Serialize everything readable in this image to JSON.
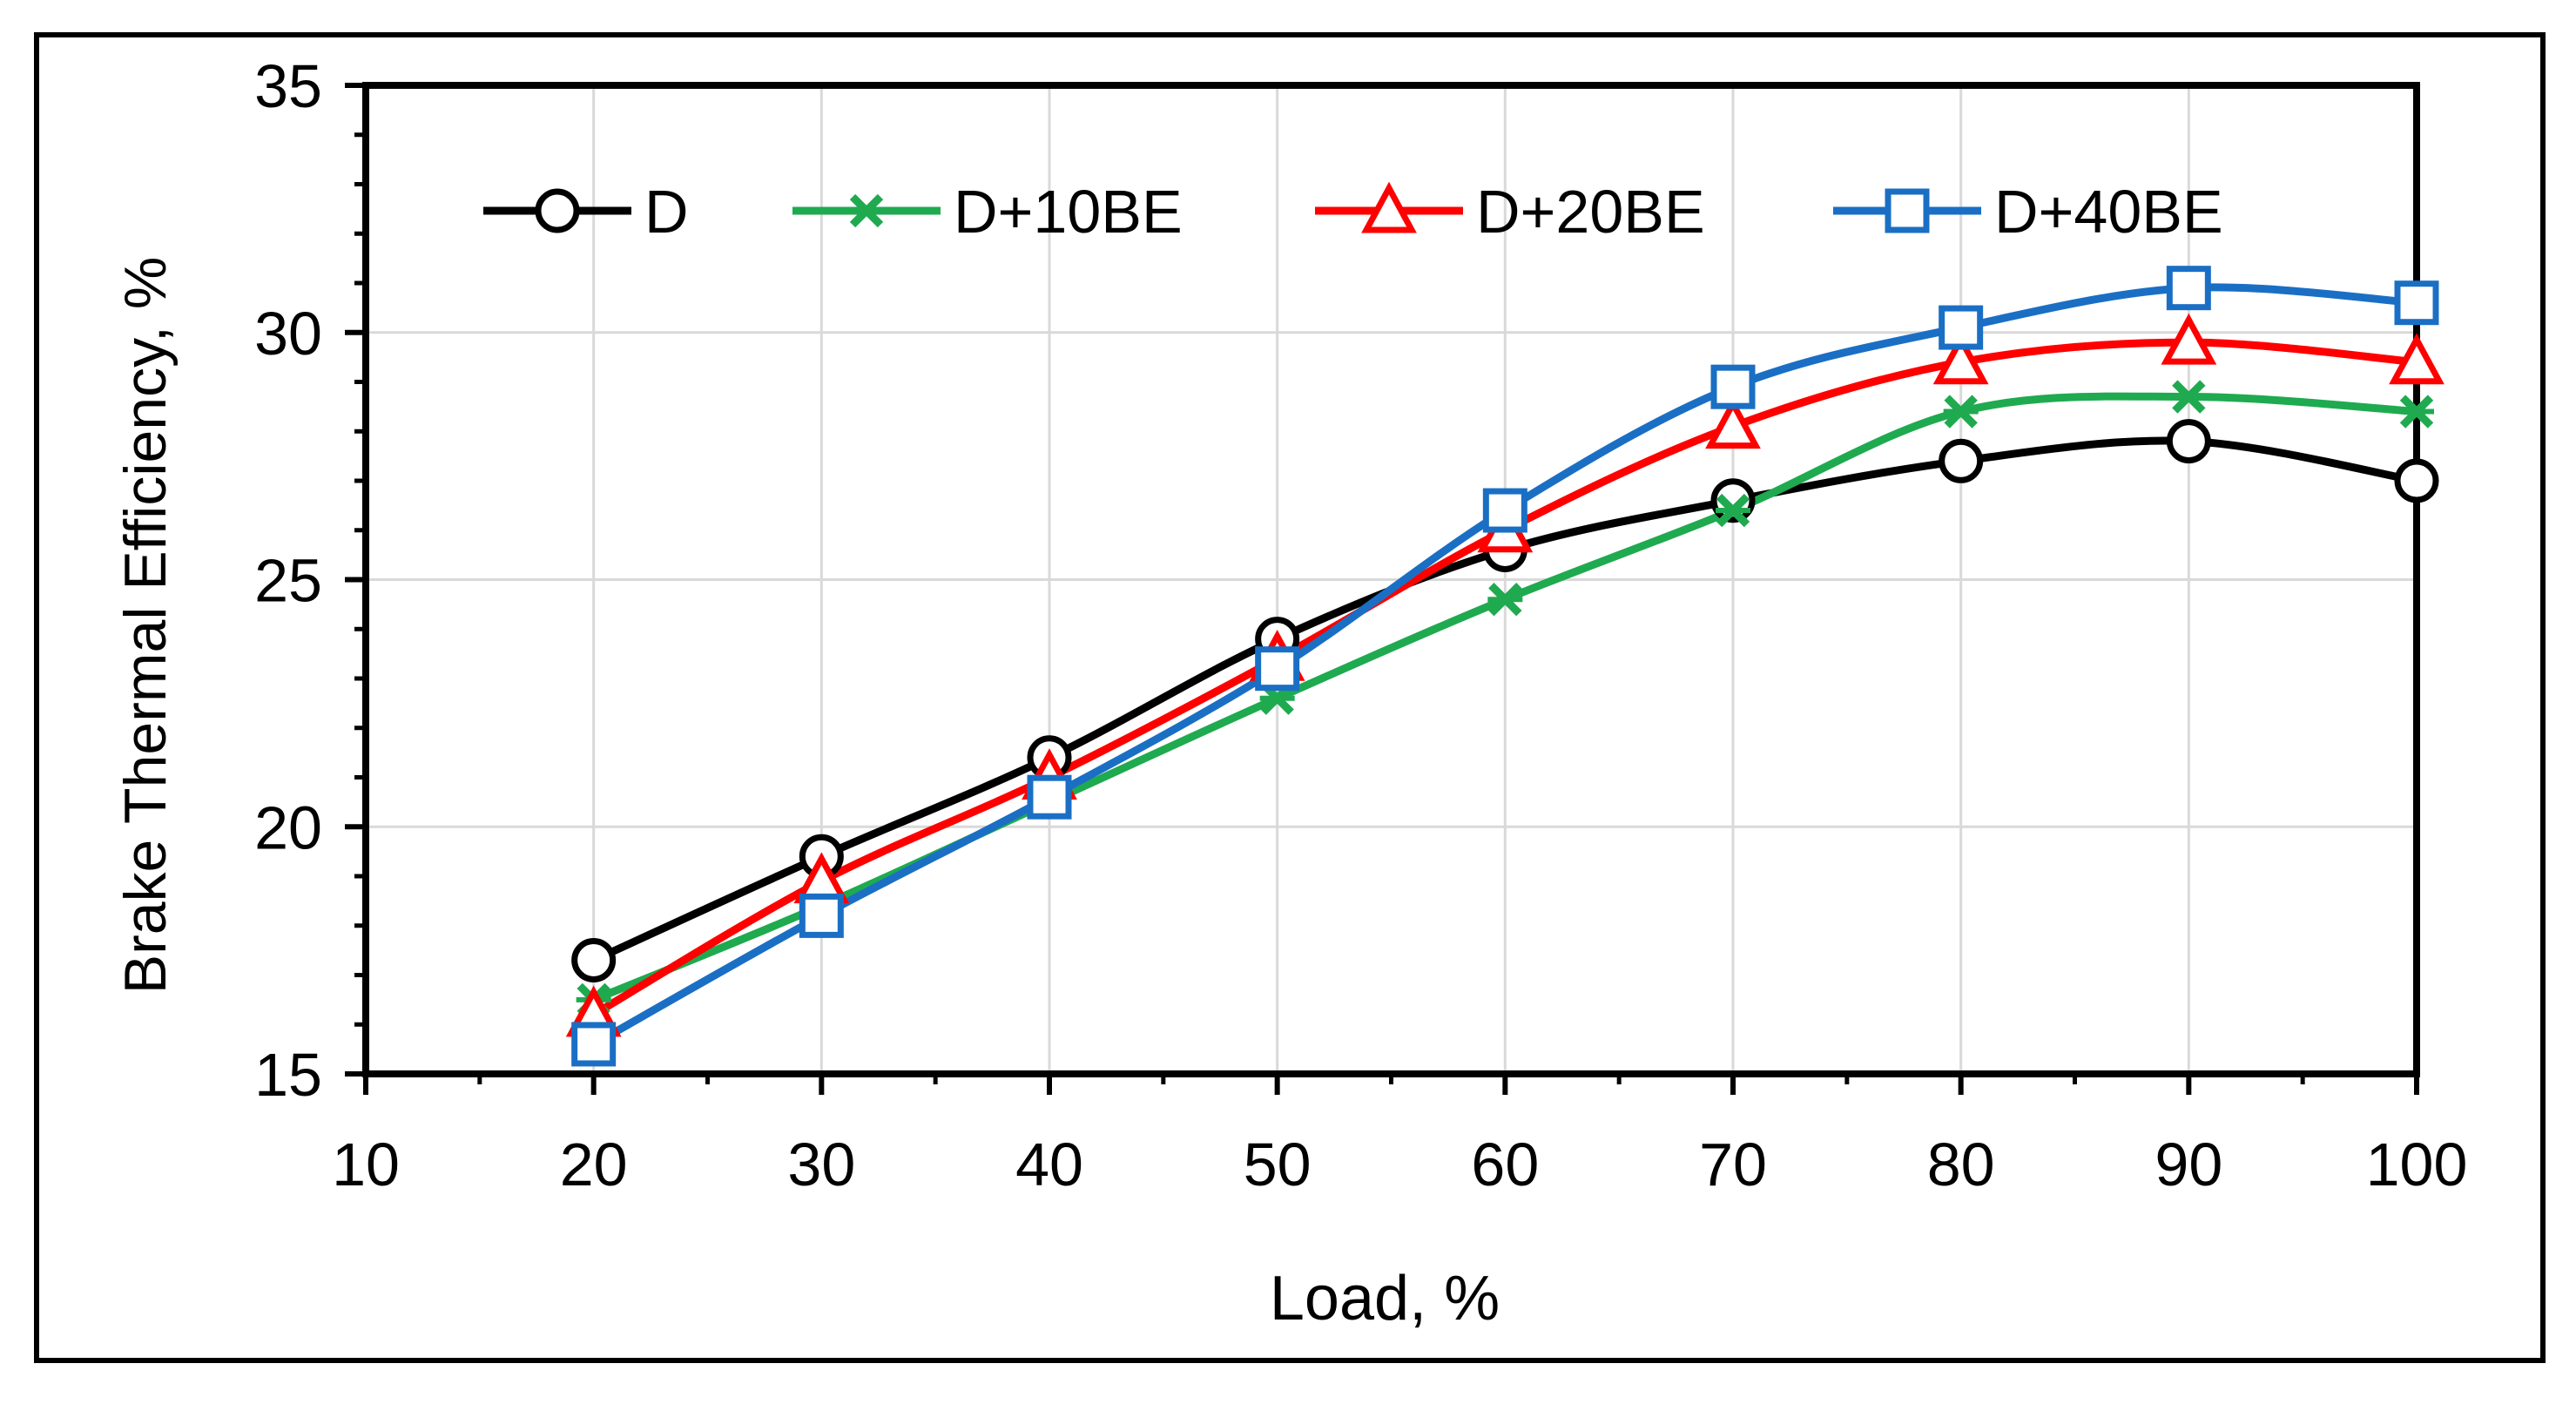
{
  "chart_data": {
    "type": "line",
    "title": "",
    "xlabel": "Load, %",
    "ylabel": "Brake Thermal Efficiency, %",
    "xlim": [
      10,
      100
    ],
    "ylim": [
      15,
      35
    ],
    "xticks": [
      10,
      20,
      30,
      40,
      50,
      60,
      70,
      80,
      90,
      100
    ],
    "yticks": [
      15,
      20,
      25,
      30,
      35
    ],
    "grid": true,
    "legend_position": "top",
    "x": [
      20,
      30,
      40,
      50,
      60,
      70,
      80,
      90,
      100
    ],
    "series": [
      {
        "name": "D",
        "color": "#000000",
        "marker": "circle",
        "values": [
          17.3,
          19.4,
          21.4,
          23.8,
          25.6,
          26.6,
          27.4,
          27.8,
          27.0
        ]
      },
      {
        "name": "D+10BE",
        "color": "#1FAA50",
        "marker": "x",
        "values": [
          16.5,
          18.4,
          20.5,
          22.6,
          24.6,
          26.4,
          28.4,
          28.7,
          28.4
        ]
      },
      {
        "name": "D+20BE",
        "color": "#FF0000",
        "marker": "triangle",
        "values": [
          16.2,
          18.9,
          21.0,
          23.4,
          26.0,
          28.1,
          29.4,
          29.8,
          29.4
        ]
      },
      {
        "name": "D+40BE",
        "color": "#1A6FC4",
        "marker": "square",
        "values": [
          15.6,
          18.2,
          20.6,
          23.2,
          26.4,
          28.9,
          30.1,
          30.9,
          30.6
        ]
      }
    ]
  }
}
